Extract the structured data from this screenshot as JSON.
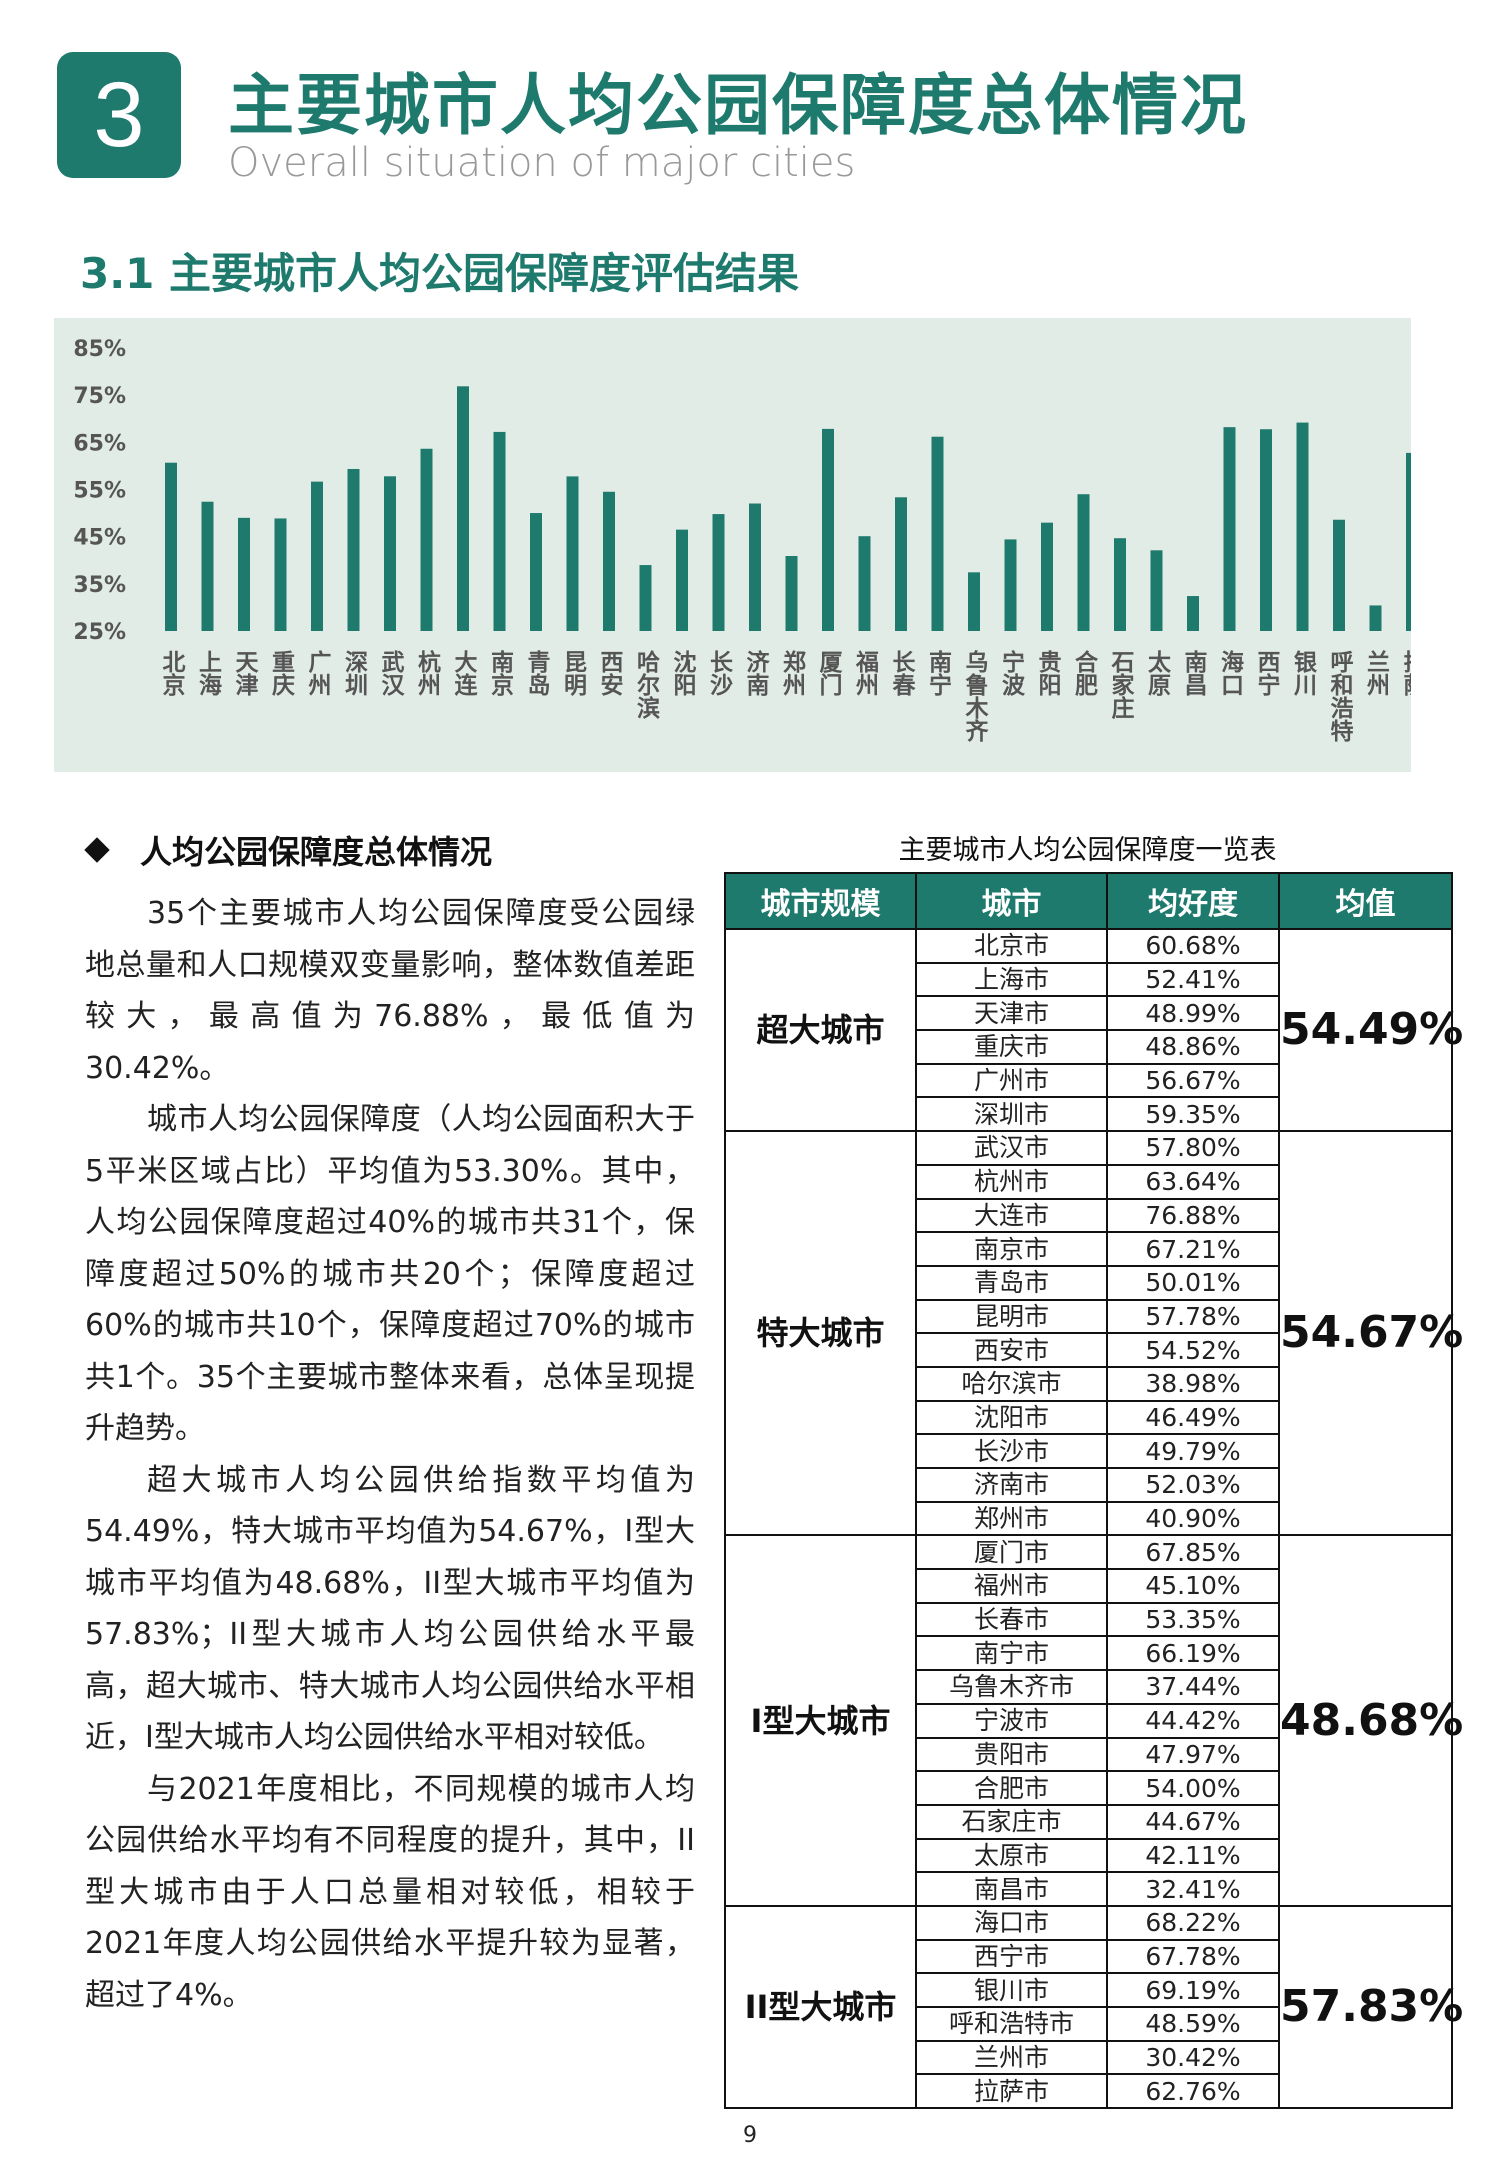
{
  "header": {
    "number": "3",
    "title_cn": "主要城市人均公园保障度总体情况",
    "title_en": "Overall situation of major cities"
  },
  "section": {
    "title": "3.1 主要城市人均公园保障度评估结果"
  },
  "chart_data": {
    "type": "bar",
    "categories": [
      "北京",
      "上海",
      "天津",
      "重庆",
      "广州",
      "深圳",
      "武汉",
      "杭州",
      "大连",
      "南京",
      "青岛",
      "昆明",
      "西安",
      "哈尔滨",
      "沈阳",
      "长沙",
      "济南",
      "郑州",
      "厦门",
      "福州",
      "长春",
      "南宁",
      "乌鲁木齐",
      "宁波",
      "贵阳",
      "合肥",
      "石家庄",
      "太原",
      "南昌",
      "海口",
      "西宁",
      "银川",
      "呼和浩特",
      "兰州",
      "拉萨"
    ],
    "values": [
      60.68,
      52.41,
      48.99,
      48.86,
      56.67,
      59.35,
      57.8,
      63.64,
      76.88,
      67.21,
      50.01,
      57.78,
      54.52,
      38.98,
      46.49,
      49.79,
      52.03,
      40.9,
      67.85,
      45.1,
      53.35,
      66.19,
      37.44,
      44.42,
      47.97,
      54.0,
      44.67,
      42.11,
      32.41,
      68.22,
      67.78,
      69.19,
      48.59,
      30.42,
      62.76
    ],
    "y_ticks": [
      "85%",
      "75%",
      "65%",
      "55%",
      "45%",
      "35%",
      "25%"
    ],
    "ylim": [
      25,
      85
    ],
    "color": "#1f7a6e",
    "grid": false
  },
  "bullet": {
    "title": "人均公园保障度总体情况"
  },
  "paragraphs": [
    "35个主要城市人均公园保障度受公园绿地总量和人口规模双变量影响，整体数值差距较大，最高值为76.88%，最低值为30.42%。",
    "城市人均公园保障度（人均公园面积大于5平米区域占比）平均值为53.30%。其中，人均公园保障度超过40%的城市共31个，保障度超过50%的城市共20个；保障度超过60%的城市共10个，保障度超过70%的城市共1个。35个主要城市整体来看，总体呈现提升趋势。",
    "超大城市人均公园供给指数平均值为54.49%，特大城市平均值为54.67%，I型大城市平均值为48.68%，II型大城市平均值为57.83%；II型大城市人均公园供给水平最高，超大城市、特大城市人均公园供给水平相近，I型大城市人均公园供给水平相对较低。",
    "与2021年度相比，不同规模的城市人均公园供给水平均有不同程度的提升，其中，II型大城市由于人口总量相对较低，相较于2021年度人均公园供给水平提升较为显著，超过了4%。"
  ],
  "table": {
    "title": "主要城市人均公园保障度一览表",
    "headers": [
      "城市规模",
      "城市",
      "均好度",
      "均值"
    ],
    "groups": [
      {
        "scale": "超大城市",
        "avg": "54.49%",
        "rows": [
          {
            "city": "北京市",
            "value": "60.68%"
          },
          {
            "city": "上海市",
            "value": "52.41%"
          },
          {
            "city": "天津市",
            "value": "48.99%"
          },
          {
            "city": "重庆市",
            "value": "48.86%"
          },
          {
            "city": "广州市",
            "value": "56.67%"
          },
          {
            "city": "深圳市",
            "value": "59.35%"
          }
        ]
      },
      {
        "scale": "特大城市",
        "avg": "54.67%",
        "rows": [
          {
            "city": "武汉市",
            "value": "57.80%"
          },
          {
            "city": "杭州市",
            "value": "63.64%"
          },
          {
            "city": "大连市",
            "value": "76.88%"
          },
          {
            "city": "南京市",
            "value": "67.21%"
          },
          {
            "city": "青岛市",
            "value": "50.01%"
          },
          {
            "city": "昆明市",
            "value": "57.78%"
          },
          {
            "city": "西安市",
            "value": "54.52%"
          },
          {
            "city": "哈尔滨市",
            "value": "38.98%"
          },
          {
            "city": "沈阳市",
            "value": "46.49%"
          },
          {
            "city": "长沙市",
            "value": "49.79%"
          },
          {
            "city": "济南市",
            "value": "52.03%"
          },
          {
            "city": "郑州市",
            "value": "40.90%"
          }
        ]
      },
      {
        "scale": "I型大城市",
        "avg": "48.68%",
        "rows": [
          {
            "city": "厦门市",
            "value": "67.85%"
          },
          {
            "city": "福州市",
            "value": "45.10%"
          },
          {
            "city": "长春市",
            "value": "53.35%"
          },
          {
            "city": "南宁市",
            "value": "66.19%"
          },
          {
            "city": "乌鲁木齐市",
            "value": "37.44%"
          },
          {
            "city": "宁波市",
            "value": "44.42%"
          },
          {
            "city": "贵阳市",
            "value": "47.97%"
          },
          {
            "city": "合肥市",
            "value": "54.00%"
          },
          {
            "city": "石家庄市",
            "value": "44.67%"
          },
          {
            "city": "太原市",
            "value": "42.11%"
          },
          {
            "city": "南昌市",
            "value": "32.41%"
          }
        ]
      },
      {
        "scale": "II型大城市",
        "avg": "57.83%",
        "rows": [
          {
            "city": "海口市",
            "value": "68.22%"
          },
          {
            "city": "西宁市",
            "value": "67.78%"
          },
          {
            "city": "银川市",
            "value": "69.19%"
          },
          {
            "city": "呼和浩特市",
            "value": "48.59%"
          },
          {
            "city": "兰州市",
            "value": "30.42%"
          },
          {
            "city": "拉萨市",
            "value": "62.76%"
          }
        ]
      }
    ]
  },
  "page_number": "9"
}
